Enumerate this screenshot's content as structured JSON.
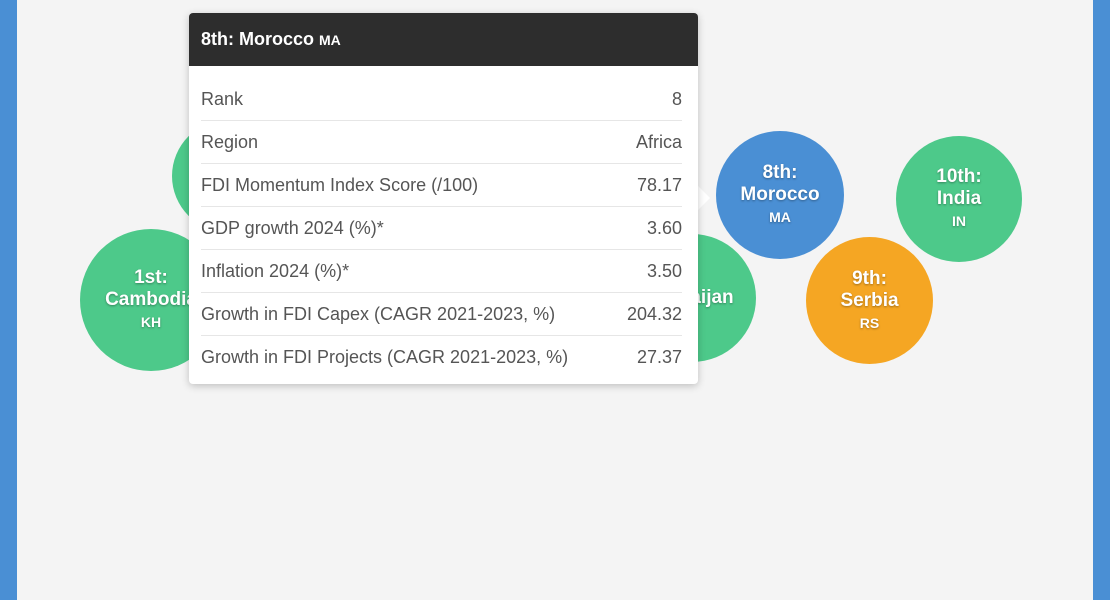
{
  "colors": {
    "background_frame": "#4a8fd4",
    "panel": "#f4f4f4",
    "green": "#4dc98a",
    "blue": "#4a8fd4",
    "orange": "#f5a623",
    "tooltip_header": "#2d2d2d"
  },
  "chart_data": {
    "type": "bubble",
    "bubbles": [
      {
        "rank": "1st:",
        "name": "Cambodia",
        "code": "KH",
        "color": "green"
      },
      {
        "rank": "",
        "name": "",
        "code": "",
        "color": "green"
      },
      {
        "rank": "",
        "name": "aijan",
        "code": "",
        "color": "green"
      },
      {
        "rank": "8th:",
        "name": "Morocco",
        "code": "MA",
        "color": "blue"
      },
      {
        "rank": "9th:",
        "name": "Serbia",
        "code": "RS",
        "color": "orange"
      },
      {
        "rank": "10th:",
        "name": "India",
        "code": "IN",
        "color": "green"
      }
    ]
  },
  "tooltip": {
    "title": "8th: Morocco",
    "code": "MA",
    "rows": [
      {
        "label": "Rank",
        "value": "8"
      },
      {
        "label": "Region",
        "value": "Africa"
      },
      {
        "label": "FDI Momentum Index Score (/100)",
        "value": "78.17"
      },
      {
        "label": "GDP growth 2024 (%)*",
        "value": "3.60"
      },
      {
        "label": "Inflation 2024 (%)*",
        "value": "3.50"
      },
      {
        "label": "Growth in FDI Capex (CAGR 2021-2023, %)",
        "value": "204.32"
      },
      {
        "label": "Growth in FDI Projects (CAGR 2021-2023, %)",
        "value": "27.37"
      }
    ]
  }
}
